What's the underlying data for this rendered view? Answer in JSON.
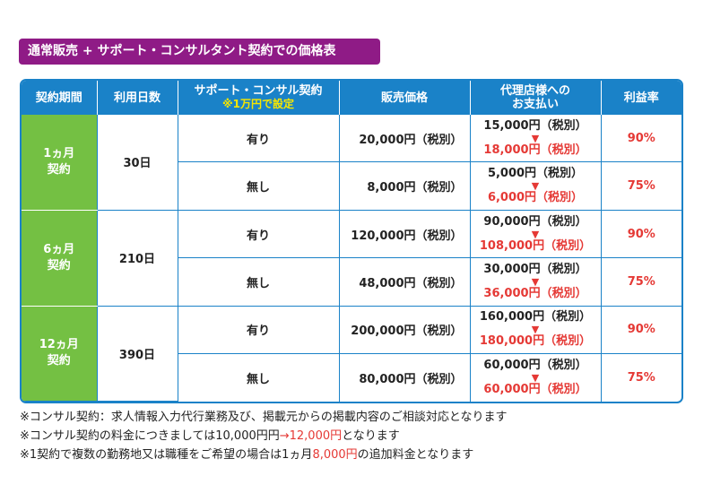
{
  "title": "通常販売 + サポート・コンサルタント契約での価格表",
  "headers": {
    "period": "契約期間",
    "days": "利用日数",
    "support": "サポート・コンサル契約",
    "support_note": "※1万円で設定",
    "price": "販売価格",
    "agency_line1": "代理店様への",
    "agency_line2": "お支払い",
    "rate": "利益率"
  },
  "groups": [
    {
      "period_line1": "1ヵ月",
      "period_line2": "契約",
      "days": "30日",
      "rows": [
        {
          "support": "有り",
          "price": "20,000円（税別）",
          "agency_old": "15,000円（税別）",
          "arrow": "▼",
          "agency_new": "18,000円（税別）",
          "rate": "90%"
        },
        {
          "support": "無し",
          "price": "8,000円（税別）",
          "agency_old": "5,000円（税別）",
          "arrow": "▼",
          "agency_new": "6,000円（税別）",
          "rate": "75%"
        }
      ]
    },
    {
      "period_line1": "6ヵ月",
      "period_line2": "契約",
      "days": "210日",
      "rows": [
        {
          "support": "有り",
          "price": "120,000円（税別）",
          "agency_old": "90,000円（税別）",
          "arrow": "▼",
          "agency_new": "108,000円（税別）",
          "rate": "90%"
        },
        {
          "support": "無し",
          "price": "48,000円（税別）",
          "agency_old": "30,000円（税別）",
          "arrow": "▼",
          "agency_new": "36,000円（税別）",
          "rate": "75%"
        }
      ]
    },
    {
      "period_line1": "12ヵ月",
      "period_line2": "契約",
      "days": "390日",
      "rows": [
        {
          "support": "有り",
          "price": "200,000円（税別）",
          "agency_old": "160,000円（税別）",
          "arrow": "▼",
          "agency_new": "180,000円（税別）",
          "rate": "90%"
        },
        {
          "support": "無し",
          "price": "80,000円（税別）",
          "agency_old": "60,000円（税別）",
          "arrow": "▼",
          "agency_new": "60,000円（税別）",
          "rate": "75%"
        }
      ]
    }
  ],
  "notes": {
    "line1": "※コンサル契約：求人情報入力代行業務及び、掲載元からの掲載内容のご相談対応となります",
    "line2_pre": "※コンサル契約の料金につきましては10,000円円",
    "line2_red": "→12,000円",
    "line2_post": "となります",
    "line3_pre": "※1契約で複数の勤務地又は職種をご希望の場合は1ヵ月",
    "line3_red": "8,000円",
    "line3_post": "の追加料金となります"
  },
  "colors": {
    "title_bg": "#8f1b86",
    "header_bg": "#1a82c8",
    "period_bg": "#74c043",
    "accent_red": "#e53935",
    "note_yellow": "#f6e600"
  }
}
